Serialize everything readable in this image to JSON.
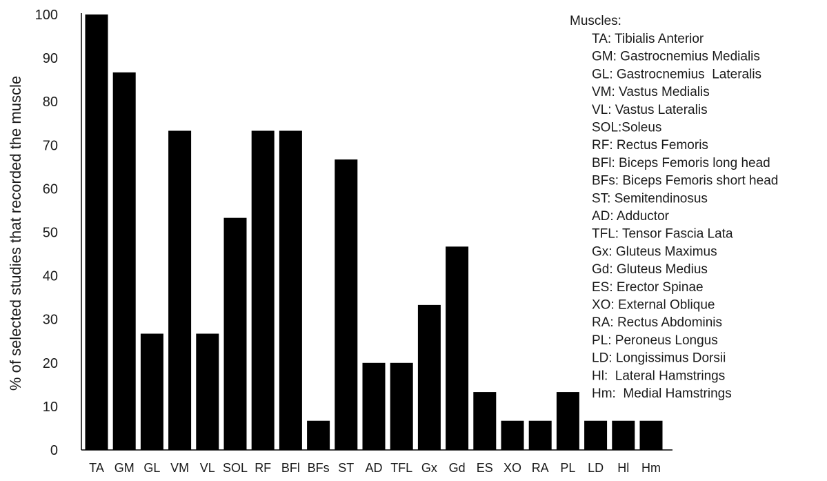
{
  "chart_data": {
    "type": "bar",
    "title": "",
    "xlabel": "",
    "ylabel": "% of selected studies that recorded the muscle",
    "ylim": [
      0,
      100
    ],
    "yticks": [
      0,
      10,
      20,
      30,
      40,
      50,
      60,
      70,
      80,
      90,
      100
    ],
    "grid": false,
    "bar_color": "#000000",
    "categories": [
      "TA",
      "GM",
      "GL",
      "VM",
      "VL",
      "SOL",
      "RF",
      "BFl",
      "BFs",
      "ST",
      "AD",
      "TFL",
      "Gx",
      "Gd",
      "ES",
      "XO",
      "RA",
      "PL",
      "LD",
      "Hl",
      "Hm"
    ],
    "values": [
      100,
      86.7,
      26.7,
      73.3,
      26.7,
      53.3,
      73.3,
      73.3,
      6.7,
      66.7,
      20,
      20,
      33.3,
      46.7,
      13.3,
      6.7,
      6.7,
      13.3,
      6.7,
      6.7,
      6.7
    ],
    "legend": {
      "placement": "top-right",
      "title": "Muscles:",
      "entries": [
        "TA: Tibialis Anterior",
        "GM: Gastrocnemius Medialis",
        "GL: Gastrocnemius  Lateralis",
        "VM: Vastus Medialis",
        "VL: Vastus Lateralis",
        "SOL:Soleus",
        "RF: Rectus Femoris",
        "BFl: Biceps Femoris long head",
        "BFs: Biceps Femoris short head",
        "ST: Semitendinosus",
        "AD: Adductor",
        "TFL: Tensor Fascia Lata",
        "Gx: Gluteus Maximus",
        "Gd: Gluteus Medius",
        "ES: Erector Spinae",
        "XO: External Oblique",
        "RA: Rectus Abdominis",
        "PL: Peroneus Longus",
        "LD: Longissimus Dorsii",
        "Hl:  Lateral Hamstrings",
        "Hm:  Medial Hamstrings"
      ]
    }
  }
}
